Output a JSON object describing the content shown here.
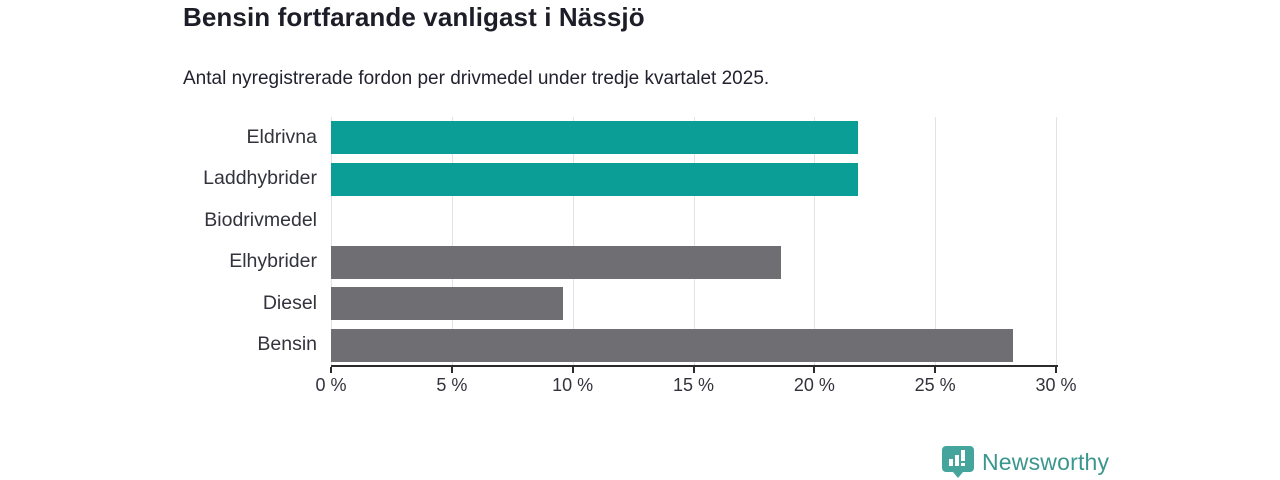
{
  "header": {
    "title": "Bensin fortfarande vanligast i Nässjö",
    "subtitle": "Antal nyregistrerade fordon per drivmedel under tredje kvartalet 2025."
  },
  "chart_data": {
    "type": "bar",
    "orientation": "horizontal",
    "title": "Bensin fortfarande vanligast i Nässjö",
    "subtitle": "Antal nyregistrerade fordon per drivmedel under tredje kvartalet 2025.",
    "categories": [
      "Eldrivna",
      "Laddhybrider",
      "Biodrivmedel",
      "Elhybrider",
      "Diesel",
      "Bensin"
    ],
    "values": [
      21.8,
      21.8,
      0,
      18.6,
      9.6,
      28.2
    ],
    "unit": "%",
    "xlim": [
      0,
      30
    ],
    "xticks": [
      0,
      5,
      10,
      15,
      20,
      25,
      30
    ],
    "xtick_labels": [
      "0 %",
      "5 %",
      "10 %",
      "15 %",
      "20 %",
      "25 %",
      "30 %"
    ],
    "ylabel": "",
    "xlabel": "",
    "grid": "vertical-gridlines-on",
    "legend": "none",
    "bar_colors": [
      "#0a9e96",
      "#0a9e96",
      "#6e6e73",
      "#6e6e73",
      "#6e6e73",
      "#6e6e73"
    ],
    "colors": {
      "highlight": "#0a9e96",
      "default": "#6e6e73",
      "gridline": "#e2e2e8",
      "axis": "#2b2b2b"
    }
  },
  "branding": {
    "name": "Newsworthy",
    "icon": "newsworthy-chart-pin-icon",
    "icon_color": "#45a59c",
    "text_color": "#3b968e"
  }
}
